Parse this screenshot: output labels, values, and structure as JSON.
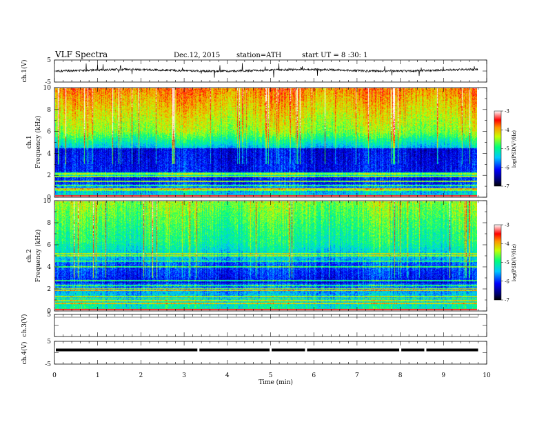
{
  "header": {
    "title": "VLF  Spectra",
    "date": "Dec.12, 2015",
    "station": "station=ATH",
    "start": "start  UT  =   8  :30: 1"
  },
  "chart_data": {
    "type": "heatmap",
    "x_axis": {
      "label": "Time  (min)",
      "range": [
        0,
        10
      ],
      "ticks": [
        "0",
        "1",
        "2",
        "3",
        "4",
        "5",
        "6",
        "7",
        "8",
        "9",
        "10"
      ],
      "minor_step": 0.2
    },
    "panels": [
      {
        "id": "ch1-waveform",
        "kind": "waveform",
        "ylabel": "ch.1(V)",
        "ylim": [
          -5,
          5
        ],
        "yticks": [
          "5",
          "-5"
        ],
        "data_end_min": 9.8
      },
      {
        "id": "ch1-spectrogram",
        "kind": "spectrogram",
        "ylabel_top": "ch.1",
        "ylabel": "Frequency  (kHz)",
        "ylim": [
          0,
          10
        ],
        "yticks": [
          "0",
          "2",
          "4",
          "6",
          "8",
          "10"
        ],
        "colorbar": {
          "label": "log(PSD(V²/Hz)",
          "range": [
            -7,
            -3
          ],
          "ticks": [
            "-3",
            "-4",
            "-5",
            "-6",
            "-7"
          ]
        }
      },
      {
        "id": "ch2-spectrogram",
        "kind": "spectrogram",
        "ylabel_top": "ch.2",
        "ylabel": "Frequency  (kHz)",
        "ylim": [
          0,
          10
        ],
        "yticks": [
          "0",
          "2",
          "4",
          "6",
          "8",
          "10"
        ],
        "colorbar": {
          "label": "log(PSD(V²/Hz)",
          "range": [
            -7,
            -3
          ],
          "ticks": [
            "-3",
            "-4",
            "-5",
            "-6",
            "-7"
          ]
        }
      },
      {
        "id": "ch3-waveform",
        "kind": "waveform",
        "ylabel": "ch.3(V)",
        "ylim": [
          -5,
          5
        ],
        "yticks": [
          "5"
        ]
      },
      {
        "id": "ch4-waveform",
        "kind": "waveform",
        "ylabel": "ch.4(V)",
        "ylim": [
          -5,
          5
        ],
        "yticks": [
          "5",
          "-5"
        ],
        "level": 0,
        "gaps_min": [
          3.33,
          5.0,
          5.82,
          8.0,
          8.58
        ]
      }
    ]
  }
}
